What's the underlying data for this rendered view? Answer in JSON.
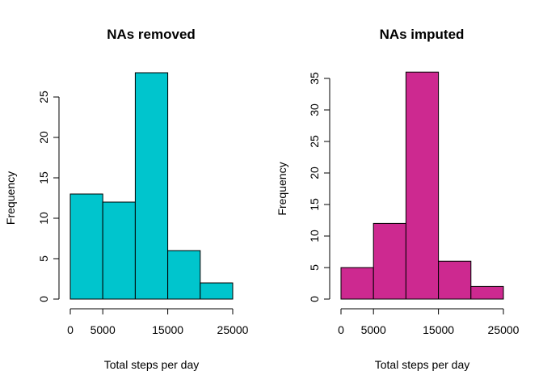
{
  "chart_data": [
    {
      "type": "bar",
      "title": "NAs removed",
      "xlabel": "Total steps per day",
      "ylabel": "Frequency",
      "bins": [
        [
          0,
          5000
        ],
        [
          5000,
          10000
        ],
        [
          10000,
          15000
        ],
        [
          15000,
          20000
        ],
        [
          20000,
          25000
        ]
      ],
      "values": [
        13,
        12,
        28,
        6,
        2
      ],
      "xlim": [
        0,
        25000
      ],
      "ylim": [
        0,
        25
      ],
      "x_ticks": [
        0,
        5000,
        15000,
        25000
      ],
      "x_tick_labels": [
        "0",
        "5000",
        "15000",
        "25000"
      ],
      "y_ticks": [
        0,
        5,
        10,
        15,
        20,
        25
      ],
      "y_tick_labels": [
        "0",
        "5",
        "10",
        "15",
        "20",
        "25"
      ],
      "bar_color": "#00C5CD",
      "grid": false
    },
    {
      "type": "bar",
      "title": "NAs imputed",
      "xlabel": "Total steps per day",
      "ylabel": "Frequency",
      "bins": [
        [
          0,
          5000
        ],
        [
          5000,
          10000
        ],
        [
          10000,
          15000
        ],
        [
          15000,
          20000
        ],
        [
          20000,
          25000
        ]
      ],
      "values": [
        5,
        12,
        36,
        6,
        2
      ],
      "xlim": [
        0,
        25000
      ],
      "ylim": [
        0,
        35
      ],
      "x_ticks": [
        0,
        5000,
        15000,
        25000
      ],
      "x_tick_labels": [
        "0",
        "5000",
        "15000",
        "25000"
      ],
      "y_ticks": [
        0,
        5,
        10,
        15,
        20,
        25,
        30,
        35
      ],
      "y_tick_labels": [
        "0",
        "5",
        "10",
        "15",
        "20",
        "25",
        "30",
        "35"
      ],
      "bar_color": "#CD2990",
      "grid": false
    }
  ]
}
